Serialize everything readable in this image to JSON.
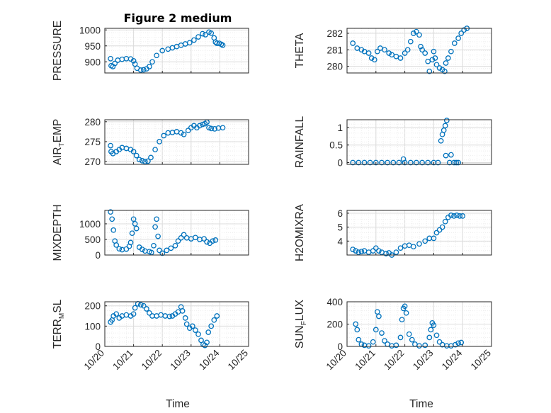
{
  "figure": {
    "title": "Figure 2 medium",
    "xlabel": "Time",
    "colors": {
      "marker": "#0072bd",
      "axis": "#262626",
      "grid": "#dcdcdc",
      "minor_grid": "#eeeeee"
    }
  },
  "chart_data": [
    {
      "type": "scatter",
      "id": "pressure",
      "ylabel": "PRESSURE",
      "yticks": [
        "900",
        "950",
        "1000"
      ],
      "ylim": [
        865,
        1005
      ],
      "xlim": [
        0,
        5
      ],
      "xticks": [],
      "points": [
        [
          0.2,
          910
        ],
        [
          0.22,
          888
        ],
        [
          0.28,
          885
        ],
        [
          0.35,
          895
        ],
        [
          0.45,
          905
        ],
        [
          0.6,
          908
        ],
        [
          0.75,
          910
        ],
        [
          0.9,
          909
        ],
        [
          1.0,
          903
        ],
        [
          1.05,
          893
        ],
        [
          1.12,
          880
        ],
        [
          1.25,
          874
        ],
        [
          1.35,
          875
        ],
        [
          1.45,
          878
        ],
        [
          1.55,
          885
        ],
        [
          1.65,
          900
        ],
        [
          1.8,
          920
        ],
        [
          2.0,
          935
        ],
        [
          2.2,
          940
        ],
        [
          2.35,
          944
        ],
        [
          2.5,
          948
        ],
        [
          2.65,
          952
        ],
        [
          2.8,
          956
        ],
        [
          2.95,
          960
        ],
        [
          3.1,
          968
        ],
        [
          3.25,
          978
        ],
        [
          3.4,
          988
        ],
        [
          3.5,
          985
        ],
        [
          3.62,
          993
        ],
        [
          3.7,
          990
        ],
        [
          3.8,
          975
        ],
        [
          3.85,
          962
        ],
        [
          3.9,
          958
        ],
        [
          3.98,
          958
        ],
        [
          4.05,
          955
        ],
        [
          4.1,
          952
        ]
      ]
    },
    {
      "type": "scatter",
      "id": "theta",
      "ylabel": "THETA",
      "yticks": [
        "280",
        "281",
        "282"
      ],
      "ylim": [
        279.6,
        282.3
      ],
      "xlim": [
        0,
        5
      ],
      "xticks": [],
      "points": [
        [
          0.2,
          281.4
        ],
        [
          0.35,
          281.1
        ],
        [
          0.5,
          281.0
        ],
        [
          0.6,
          280.9
        ],
        [
          0.75,
          280.8
        ],
        [
          0.85,
          280.5
        ],
        [
          0.95,
          280.4
        ],
        [
          1.05,
          280.9
        ],
        [
          1.15,
          281.1
        ],
        [
          1.3,
          281.0
        ],
        [
          1.45,
          280.8
        ],
        [
          1.55,
          280.7
        ],
        [
          1.7,
          280.6
        ],
        [
          1.85,
          280.5
        ],
        [
          2.0,
          280.8
        ],
        [
          2.1,
          281.0
        ],
        [
          2.2,
          281.5
        ],
        [
          2.3,
          282.0
        ],
        [
          2.4,
          282.1
        ],
        [
          2.5,
          281.9
        ],
        [
          2.55,
          281.2
        ],
        [
          2.6,
          281.0
        ],
        [
          2.7,
          280.8
        ],
        [
          2.8,
          280.3
        ],
        [
          2.85,
          279.7
        ],
        [
          2.95,
          280.4
        ],
        [
          3.0,
          280.9
        ],
        [
          3.05,
          280.5
        ],
        [
          3.1,
          280.1
        ],
        [
          3.2,
          279.9
        ],
        [
          3.3,
          279.8
        ],
        [
          3.38,
          279.7
        ],
        [
          3.42,
          280.2
        ],
        [
          3.5,
          280.5
        ],
        [
          3.6,
          280.9
        ],
        [
          3.72,
          281.4
        ],
        [
          3.85,
          281.7
        ],
        [
          3.95,
          282.0
        ],
        [
          4.05,
          282.2
        ],
        [
          4.15,
          282.3
        ]
      ]
    },
    {
      "type": "scatter",
      "id": "air_temp",
      "ylabel": "AIR",
      "ylabel_sub": "T",
      "ylabel_tail": "EMP",
      "yticks": [
        "270",
        "275",
        "280"
      ],
      "ylim": [
        269.3,
        280.5
      ],
      "xlim": [
        0,
        5
      ],
      "xticks": [],
      "points": [
        [
          0.2,
          274
        ],
        [
          0.22,
          272.5
        ],
        [
          0.28,
          272
        ],
        [
          0.4,
          272.5
        ],
        [
          0.5,
          273
        ],
        [
          0.6,
          273.5
        ],
        [
          0.75,
          273.3
        ],
        [
          0.9,
          273
        ],
        [
          1.0,
          272.5
        ],
        [
          1.1,
          271.5
        ],
        [
          1.2,
          270.5
        ],
        [
          1.3,
          270.2
        ],
        [
          1.4,
          270
        ],
        [
          1.5,
          270.1
        ],
        [
          1.6,
          271
        ],
        [
          1.75,
          273
        ],
        [
          1.9,
          275
        ],
        [
          2.05,
          276.5
        ],
        [
          2.2,
          277.2
        ],
        [
          2.35,
          277.3
        ],
        [
          2.5,
          277.5
        ],
        [
          2.65,
          277.2
        ],
        [
          2.75,
          276.8
        ],
        [
          2.9,
          277.8
        ],
        [
          3.0,
          278.5
        ],
        [
          3.1,
          279
        ],
        [
          3.2,
          278.5
        ],
        [
          3.3,
          279
        ],
        [
          3.4,
          279.3
        ],
        [
          3.48,
          279.5
        ],
        [
          3.55,
          279.9
        ],
        [
          3.62,
          278.5
        ],
        [
          3.7,
          278.3
        ],
        [
          3.82,
          278.2
        ],
        [
          3.95,
          278.4
        ],
        [
          4.1,
          278.5
        ]
      ]
    },
    {
      "type": "scatter",
      "id": "rainfall",
      "ylabel": "RAINFALL",
      "yticks": [
        "0",
        "0.5",
        "1"
      ],
      "ylim": [
        -0.05,
        1.22
      ],
      "xlim": [
        0,
        5
      ],
      "xticks": [],
      "points": [
        [
          0.2,
          0
        ],
        [
          0.4,
          0
        ],
        [
          0.6,
          0
        ],
        [
          0.8,
          0
        ],
        [
          1.0,
          0
        ],
        [
          1.2,
          0
        ],
        [
          1.4,
          0
        ],
        [
          1.6,
          0
        ],
        [
          1.8,
          0
        ],
        [
          1.95,
          0.1
        ],
        [
          2.0,
          0
        ],
        [
          2.2,
          0
        ],
        [
          2.4,
          0
        ],
        [
          2.6,
          0
        ],
        [
          2.8,
          0
        ],
        [
          3.0,
          0
        ],
        [
          3.15,
          0
        ],
        [
          3.25,
          0.62
        ],
        [
          3.3,
          0.8
        ],
        [
          3.35,
          0.92
        ],
        [
          3.4,
          1.05
        ],
        [
          3.45,
          1.2
        ],
        [
          3.42,
          0.2
        ],
        [
          3.55,
          0
        ],
        [
          3.6,
          0.22
        ],
        [
          3.7,
          0
        ],
        [
          3.78,
          0
        ],
        [
          3.85,
          0
        ]
      ]
    },
    {
      "type": "scatter",
      "id": "mixdepth",
      "ylabel": "MIXDEPTH",
      "yticks": [
        "0",
        "500",
        "1000"
      ],
      "ylim": [
        0,
        1430
      ],
      "xlim": [
        0,
        5
      ],
      "xticks": [],
      "points": [
        [
          0.2,
          1380
        ],
        [
          0.25,
          1150
        ],
        [
          0.3,
          800
        ],
        [
          0.35,
          450
        ],
        [
          0.4,
          320
        ],
        [
          0.5,
          200
        ],
        [
          0.6,
          170
        ],
        [
          0.75,
          190
        ],
        [
          0.85,
          280
        ],
        [
          0.9,
          400
        ],
        [
          0.95,
          700
        ],
        [
          1.0,
          1150
        ],
        [
          1.05,
          1000
        ],
        [
          1.1,
          850
        ],
        [
          1.2,
          250
        ],
        [
          1.3,
          180
        ],
        [
          1.4,
          130
        ],
        [
          1.55,
          110
        ],
        [
          1.62,
          80
        ],
        [
          1.7,
          300
        ],
        [
          1.75,
          900
        ],
        [
          1.8,
          1150
        ],
        [
          1.85,
          600
        ],
        [
          1.9,
          150
        ],
        [
          2.0,
          60
        ],
        [
          2.15,
          150
        ],
        [
          2.3,
          220
        ],
        [
          2.45,
          300
        ],
        [
          2.55,
          450
        ],
        [
          2.65,
          550
        ],
        [
          2.75,
          650
        ],
        [
          2.85,
          550
        ],
        [
          3.0,
          520
        ],
        [
          3.15,
          560
        ],
        [
          3.3,
          500
        ],
        [
          3.45,
          520
        ],
        [
          3.55,
          420
        ],
        [
          3.65,
          380
        ],
        [
          3.75,
          450
        ],
        [
          3.85,
          480
        ]
      ]
    },
    {
      "type": "scatter",
      "id": "h2omixra",
      "ylabel": "H2OMIXRA",
      "yticks": [
        "4",
        "5",
        "6"
      ],
      "ylim": [
        3.0,
        6.2
      ],
      "xlim": [
        0,
        5
      ],
      "xticks": [],
      "points": [
        [
          0.2,
          3.4
        ],
        [
          0.3,
          3.3
        ],
        [
          0.4,
          3.2
        ],
        [
          0.5,
          3.25
        ],
        [
          0.6,
          3.3
        ],
        [
          0.75,
          3.2
        ],
        [
          0.9,
          3.3
        ],
        [
          1.0,
          3.5
        ],
        [
          1.1,
          3.3
        ],
        [
          1.2,
          3.2
        ],
        [
          1.35,
          3.1
        ],
        [
          1.45,
          3.15
        ],
        [
          1.55,
          3.0
        ],
        [
          1.7,
          3.2
        ],
        [
          1.85,
          3.5
        ],
        [
          2.0,
          3.65
        ],
        [
          2.15,
          3.7
        ],
        [
          2.3,
          3.6
        ],
        [
          2.5,
          3.8
        ],
        [
          2.7,
          4.0
        ],
        [
          2.85,
          4.2
        ],
        [
          3.0,
          4.2
        ],
        [
          3.1,
          4.6
        ],
        [
          3.2,
          4.8
        ],
        [
          3.3,
          5.0
        ],
        [
          3.4,
          5.4
        ],
        [
          3.5,
          5.7
        ],
        [
          3.6,
          5.85
        ],
        [
          3.7,
          5.8
        ],
        [
          3.8,
          5.85
        ],
        [
          3.9,
          5.8
        ],
        [
          4.0,
          5.8
        ]
      ]
    },
    {
      "type": "scatter",
      "id": "terr_msl",
      "ylabel": "TERR",
      "ylabel_sub": "M",
      "ylabel_tail": "SL",
      "yticks": [
        "0",
        "100",
        "200"
      ],
      "ylim": [
        0,
        220
      ],
      "xticks": [
        "10/20",
        "10/21",
        "10/22",
        "10/23",
        "10/24",
        "10/25"
      ],
      "xlim": [
        0,
        5
      ],
      "points": [
        [
          0.2,
          120
        ],
        [
          0.25,
          130
        ],
        [
          0.3,
          150
        ],
        [
          0.4,
          160
        ],
        [
          0.5,
          140
        ],
        [
          0.6,
          150
        ],
        [
          0.75,
          155
        ],
        [
          0.9,
          150
        ],
        [
          1.0,
          160
        ],
        [
          1.05,
          190
        ],
        [
          1.15,
          210
        ],
        [
          1.25,
          205
        ],
        [
          1.35,
          200
        ],
        [
          1.45,
          185
        ],
        [
          1.55,
          165
        ],
        [
          1.65,
          150
        ],
        [
          1.8,
          150
        ],
        [
          1.95,
          155
        ],
        [
          2.1,
          150
        ],
        [
          2.25,
          148
        ],
        [
          2.35,
          150
        ],
        [
          2.45,
          160
        ],
        [
          2.55,
          170
        ],
        [
          2.65,
          195
        ],
        [
          2.7,
          175
        ],
        [
          2.8,
          140
        ],
        [
          2.85,
          110
        ],
        [
          2.95,
          90
        ],
        [
          3.05,
          100
        ],
        [
          3.15,
          80
        ],
        [
          3.25,
          60
        ],
        [
          3.35,
          30
        ],
        [
          3.42,
          10
        ],
        [
          3.48,
          5
        ],
        [
          3.55,
          20
        ],
        [
          3.6,
          70
        ],
        [
          3.7,
          100
        ],
        [
          3.8,
          130
        ],
        [
          3.9,
          150
        ]
      ]
    },
    {
      "type": "scatter",
      "id": "sun_flux",
      "ylabel": "SUN",
      "ylabel_sub": "F",
      "ylabel_tail": "LUX",
      "yticks": [
        "0",
        "200",
        "400"
      ],
      "ylim": [
        0,
        400
      ],
      "xticks": [
        "10/20",
        "10/21",
        "10/22",
        "10/23",
        "10/24",
        "10/25"
      ],
      "xlim": [
        0,
        5
      ],
      "points": [
        [
          0.3,
          200
        ],
        [
          0.35,
          150
        ],
        [
          0.4,
          60
        ],
        [
          0.5,
          20
        ],
        [
          0.6,
          10
        ],
        [
          0.75,
          5
        ],
        [
          0.9,
          40
        ],
        [
          1.0,
          150
        ],
        [
          1.05,
          310
        ],
        [
          1.1,
          270
        ],
        [
          1.2,
          120
        ],
        [
          1.3,
          50
        ],
        [
          1.4,
          20
        ],
        [
          1.55,
          5
        ],
        [
          1.7,
          10
        ],
        [
          1.85,
          80
        ],
        [
          1.9,
          240
        ],
        [
          1.95,
          340
        ],
        [
          2.0,
          360
        ],
        [
          2.05,
          300
        ],
        [
          2.15,
          110
        ],
        [
          2.25,
          60
        ],
        [
          2.35,
          20
        ],
        [
          2.5,
          5
        ],
        [
          2.7,
          10
        ],
        [
          2.85,
          80
        ],
        [
          2.9,
          150
        ],
        [
          2.95,
          210
        ],
        [
          3.0,
          190
        ],
        [
          3.1,
          100
        ],
        [
          3.2,
          40
        ],
        [
          3.3,
          15
        ],
        [
          3.45,
          5
        ],
        [
          3.6,
          5
        ],
        [
          3.75,
          15
        ],
        [
          3.85,
          30
        ],
        [
          3.95,
          35
        ]
      ]
    }
  ]
}
